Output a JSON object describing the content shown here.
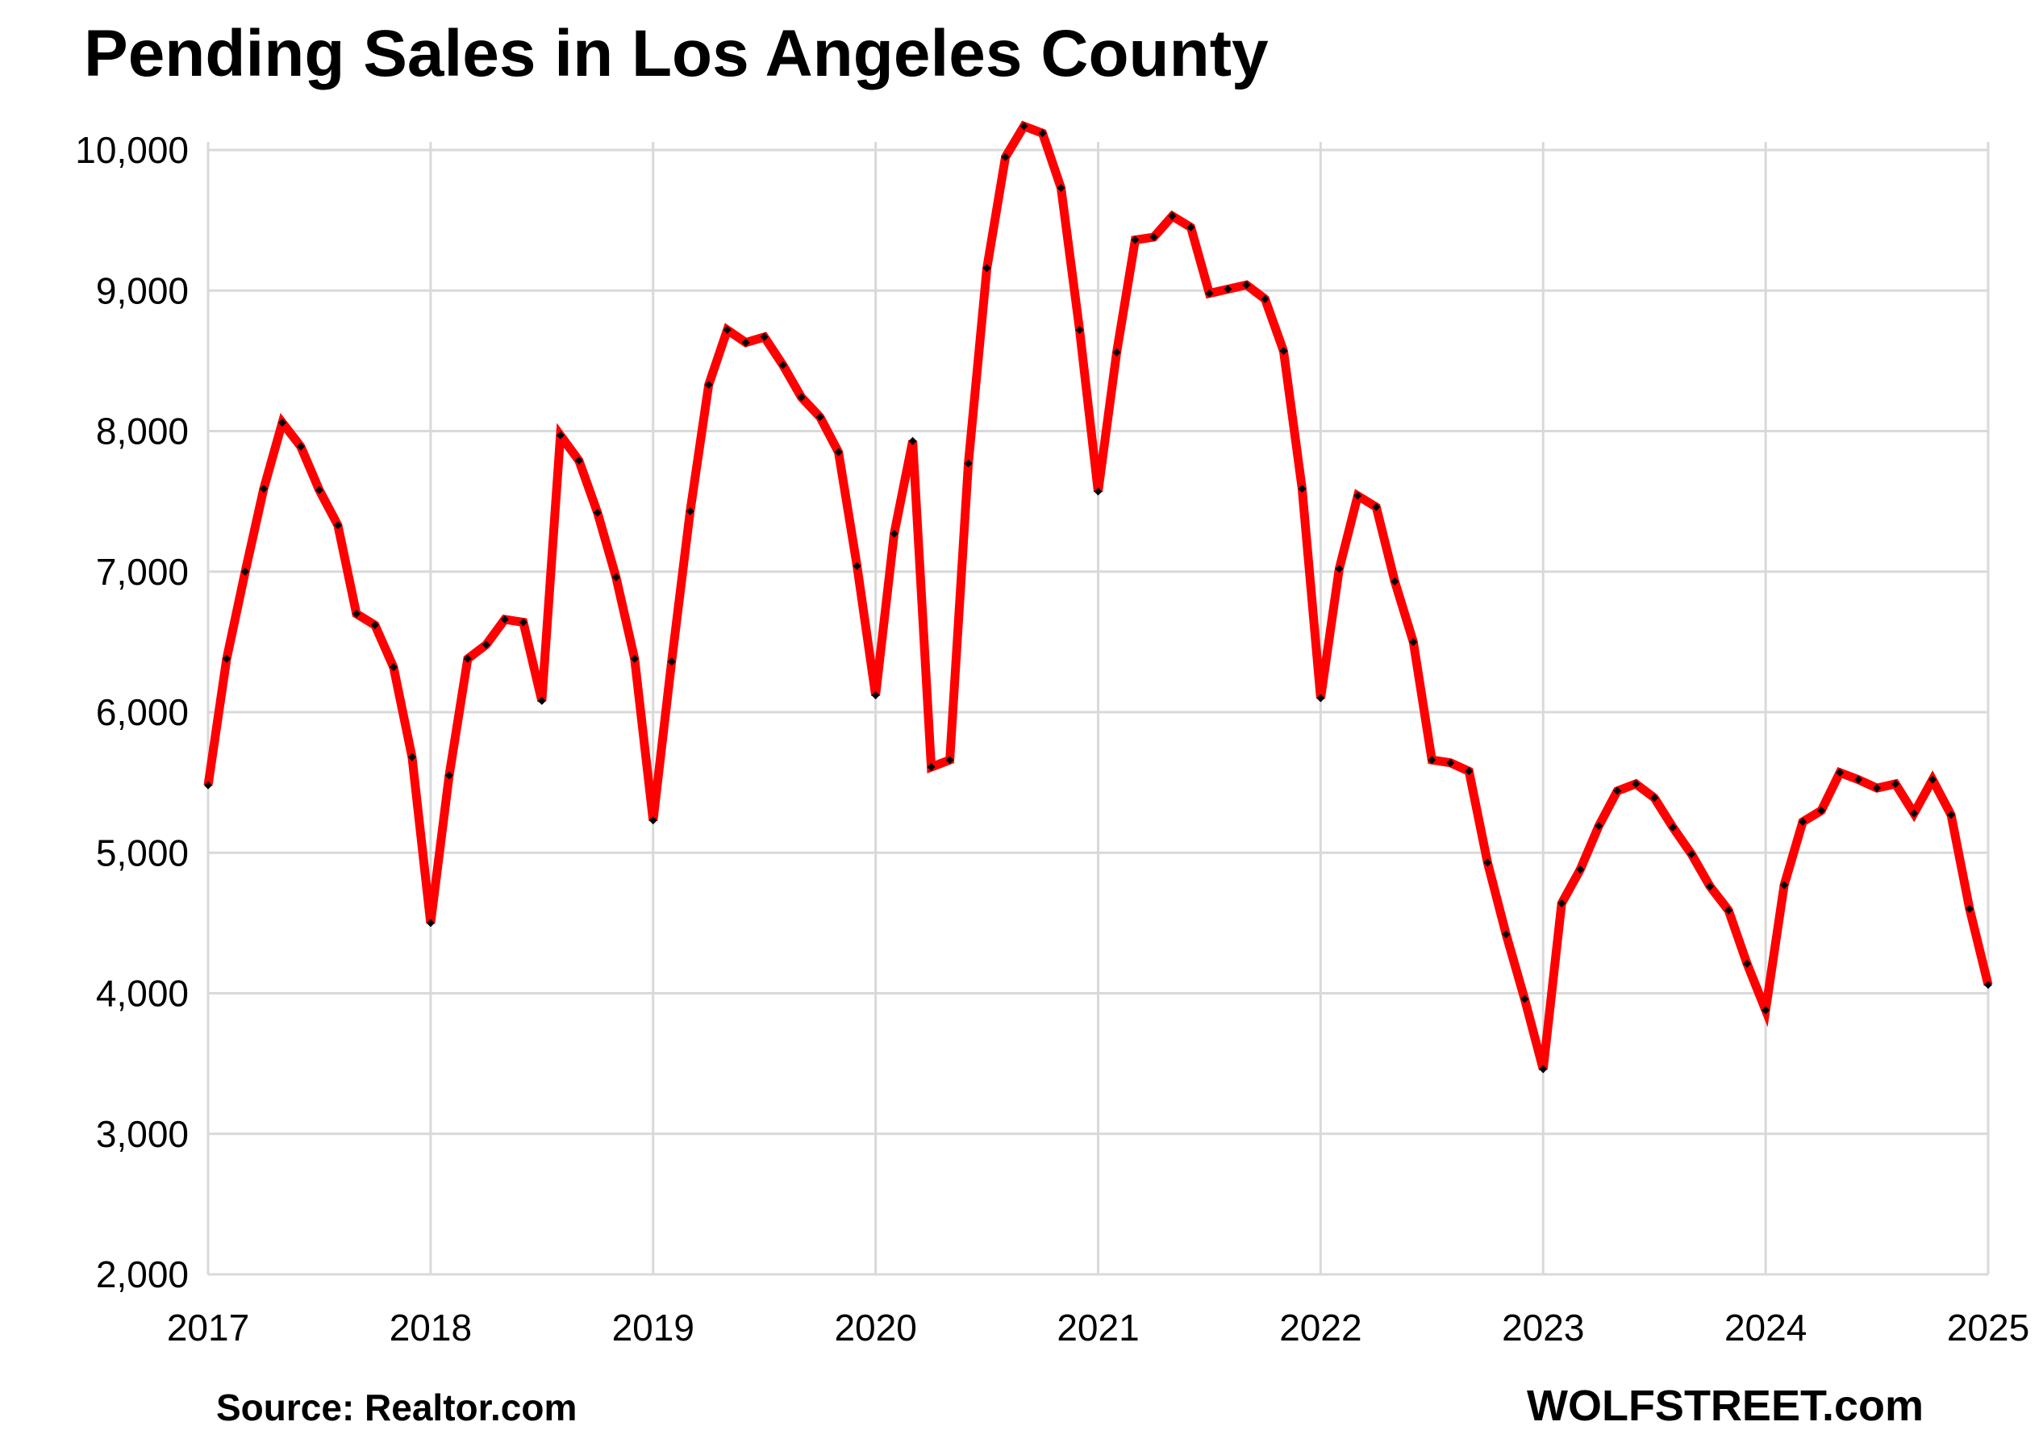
{
  "title": "Pending Sales in Los Angeles County",
  "source": "Source: Realtor.com",
  "brand": "WOLFSTREET.com",
  "colors": {
    "line": "#ff0000",
    "marker": "#000000",
    "grid": "#d9d9d9"
  },
  "chart_data": {
    "type": "line",
    "title": "Pending Sales in Los Angeles County",
    "xlabel": "",
    "ylabel": "",
    "xlim": [
      2017,
      2025
    ],
    "ylim": [
      2000,
      10000
    ],
    "x_ticks": [
      "2017",
      "2018",
      "2019",
      "2020",
      "2021",
      "2022",
      "2023",
      "2024",
      "2025"
    ],
    "y_ticks": [
      "2,000",
      "3,000",
      "4,000",
      "5,000",
      "6,000",
      "7,000",
      "8,000",
      "9,000",
      "10,000"
    ],
    "grid": true,
    "series": [
      {
        "frequency": "monthly",
        "start": "2017-01",
        "values": [
          5480,
          6380,
          7000,
          7590,
          8060,
          7890,
          7580,
          7330,
          6700,
          6620,
          6320,
          5680,
          4500,
          5550,
          6380,
          6480,
          6660,
          6640,
          6080,
          7970,
          7790,
          7420,
          6960,
          6380,
          5230,
          6360,
          7430,
          8330,
          8720,
          8630,
          8670,
          8470,
          8240,
          8100,
          7850,
          7040,
          6120,
          7270,
          7930,
          5610,
          5660,
          7770,
          9160,
          9950,
          10170,
          10120,
          9730,
          8720,
          7570,
          8560,
          9360,
          9380,
          9530,
          9450,
          8980,
          9010,
          9040,
          8940,
          8570,
          7590,
          6100,
          7020,
          7540,
          7460,
          6930,
          6500,
          5660,
          5640,
          5580,
          4930,
          4420,
          3960,
          3460,
          4640,
          4880,
          5190,
          5440,
          5490,
          5390,
          5180,
          4990,
          4760,
          4590,
          4210,
          3880,
          4770,
          5220,
          5300,
          5570,
          5520,
          5460,
          5490,
          5280,
          5520,
          5270,
          4600,
          4060
        ]
      }
    ]
  }
}
